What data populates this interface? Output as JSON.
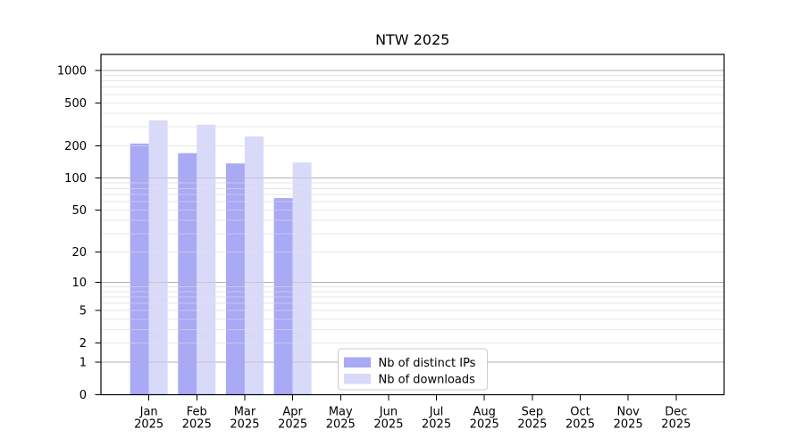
{
  "page": {
    "background": "#ffffff"
  },
  "chart_data": {
    "type": "bar",
    "title": "NTW 2025",
    "categories": [
      "Jan 2025",
      "Feb 2025",
      "Mar 2025",
      "Apr 2025",
      "May 2025",
      "Jun 2025",
      "Jul 2025",
      "Aug 2025",
      "Sep 2025",
      "Oct 2025",
      "Nov 2025",
      "Dec 2025"
    ],
    "series": [
      {
        "name": "Nb of distinct IPs",
        "color": "#a9a9f5",
        "values": [
          210,
          171,
          137,
          65,
          0,
          0,
          0,
          0,
          0,
          0,
          0,
          0
        ]
      },
      {
        "name": "Nb of downloads",
        "color": "#d9d9fa",
        "values": [
          345,
          314,
          244,
          140,
          0,
          0,
          0,
          0,
          0,
          0,
          0,
          0
        ]
      }
    ],
    "xlabel": "",
    "ylabel": "",
    "yscale": "log1p",
    "yticks": [
      1000,
      500,
      200,
      100,
      50,
      20,
      10,
      5,
      2,
      1,
      0
    ],
    "ylim": [
      0,
      1400
    ],
    "grid": "on",
    "legend_position": "bottom-center-inside",
    "colors": {
      "major_grid": "#b2b2b2",
      "minor_grid": "#e6e6e6",
      "frame": "#000000",
      "legend_border": "#cccccc",
      "legend_background": "#ffffff"
    }
  }
}
